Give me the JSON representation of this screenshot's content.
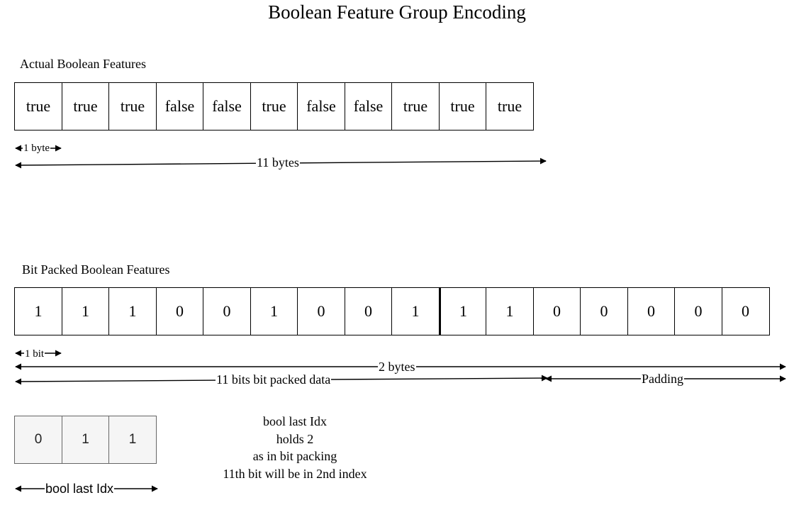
{
  "title": "Boolean Feature Group Encoding",
  "actual": {
    "label": "Actual Boolean Features",
    "cells": [
      "true",
      "true",
      "true",
      "false",
      "false",
      "true",
      "false",
      "false",
      "true",
      "true",
      "true"
    ],
    "unit_label": "1 byte",
    "total_label": "11 bytes"
  },
  "packed": {
    "label": "Bit Packed Boolean Features",
    "cells": [
      "1",
      "1",
      "1",
      "0",
      "0",
      "1",
      "0",
      "0",
      "1",
      "1",
      "1",
      "0",
      "0",
      "0",
      "0",
      "0"
    ],
    "unit_label": "1 bit",
    "total_label": "2 bytes",
    "data_label": "11 bits bit packed data",
    "padding_label": "Padding"
  },
  "last_idx": {
    "cells": [
      "0",
      "1",
      "1"
    ],
    "label": "bool last Idx",
    "note": [
      "bool last Idx",
      "holds 2",
      "as in bit packing",
      "11th bit will be in 2nd index"
    ]
  }
}
